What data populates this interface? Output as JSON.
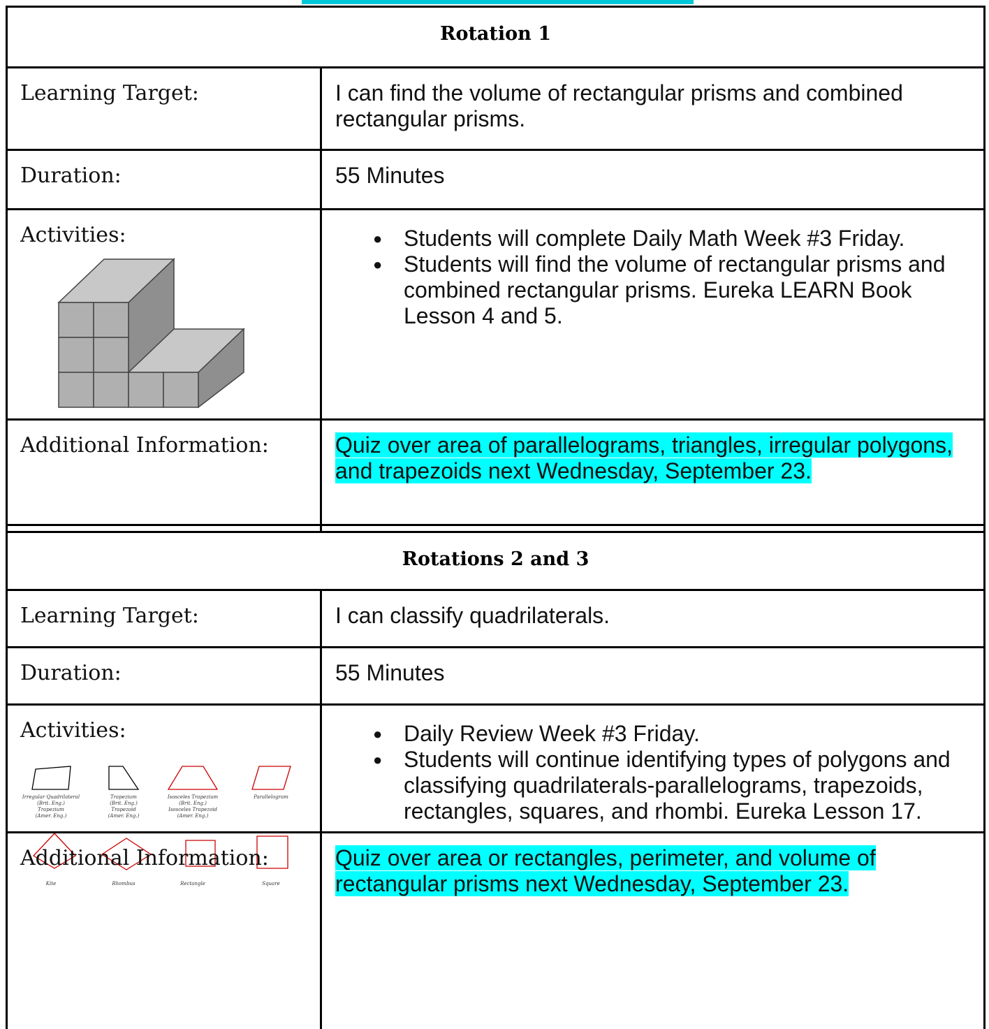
{
  "sections": [
    {
      "title": "Rotation 1",
      "rows": [
        {
          "label": "Learning Target:",
          "content": "I can find the volume of rectangular prisms and combined rectangular prisms."
        },
        {
          "label": "Duration:",
          "content": "55 Minutes"
        },
        {
          "label": "Activities:",
          "items": [
            "Students will complete Daily Math Week #3 Friday.",
            "Students will find the volume of rectangular prisms and combined rectangular prisms. Eureka LEARN Book Lesson 4 and 5."
          ]
        },
        {
          "label": "Additional Information:",
          "content": "Quiz over area of parallelograms, triangles, irregular polygons, and trapezoids next Wednesday, September 23."
        }
      ]
    },
    {
      "title": "Rotations 2 and 3",
      "rows": [
        {
          "label": "Learning Target:",
          "content": "I can classify quadrilaterals."
        },
        {
          "label": "Duration:",
          "content": "55 Minutes"
        },
        {
          "label": "Activities:",
          "items": [
            "Daily Review Week #3 Friday.",
            "Students will continue identifying types of polygons and classifying quadrilaterals-parallelograms, trapezoids, rectangles, squares, and rhombi. Eureka Lesson 17."
          ],
          "figure_labels": [
            [
              "Irregular Quadrilateral",
              "(Brit. Eng.)",
              "Trapezium",
              "(Amer. Eng.)"
            ],
            [
              "Trapezium",
              "(Brit. Eng.)",
              "Trapezoid",
              "(Amer. Eng.)"
            ],
            [
              "Isosceles Trapezium",
              "(Brit. Eng.)",
              "Isosceles Trapezoid",
              "(Amer. Eng.)"
            ],
            [
              "Parallelogram"
            ],
            [
              "Kite"
            ],
            [
              "Rhombus"
            ],
            [
              "Rectangle"
            ],
            [
              "Square"
            ]
          ]
        },
        {
          "label": "Additional Information:",
          "content": "Quiz over area or rectangles, perimeter, and volume of rectangular prisms next Wednesday, September 23."
        }
      ]
    }
  ]
}
